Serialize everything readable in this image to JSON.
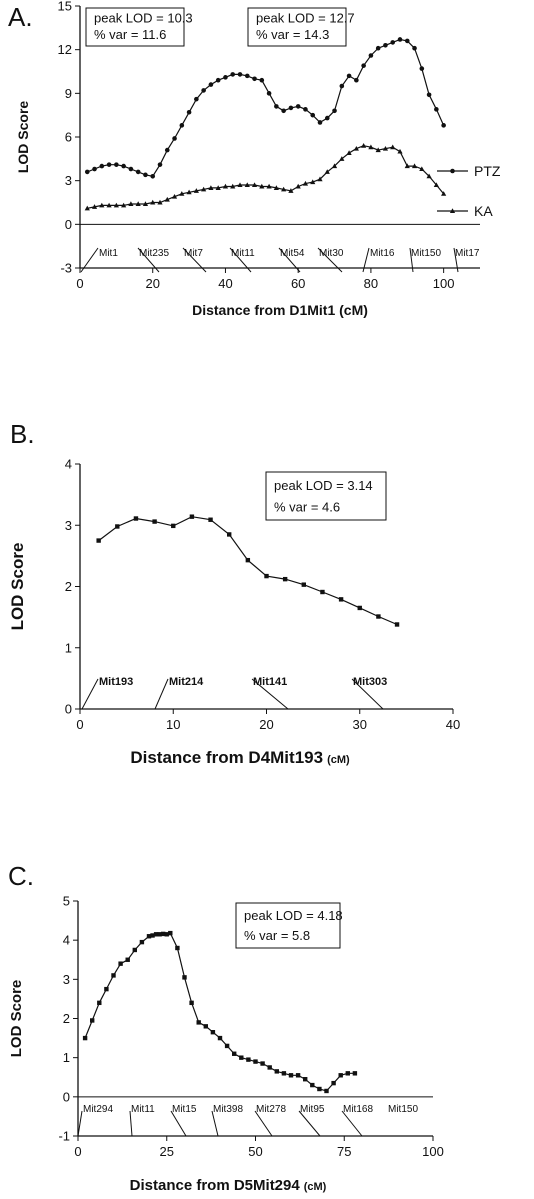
{
  "chart_data": [
    {
      "panel_label": "A.",
      "type": "line",
      "xlabel": "Distance from D1Mit1 (cM)",
      "ylabel": "LOD Score",
      "xlim": [
        0,
        110
      ],
      "ylim": [
        -3,
        15
      ],
      "xticks": [
        0,
        20,
        40,
        60,
        80,
        100
      ],
      "yticks": [
        -3,
        0,
        3,
        6,
        9,
        12,
        15
      ],
      "annotations": [
        {
          "line1": "peak LOD = 10.3",
          "line2": "% var = 11.6"
        },
        {
          "line1": "peak LOD = 12.7",
          "line2": "% var = 14.3"
        }
      ],
      "series": [
        {
          "name": "PTZ",
          "marker": "circle",
          "x": [
            2,
            4,
            6,
            8,
            10,
            12,
            14,
            16,
            18,
            20,
            22,
            24,
            26,
            28,
            30,
            32,
            34,
            36,
            38,
            40,
            42,
            44,
            46,
            48,
            50,
            52,
            54,
            56,
            58,
            60,
            62,
            64,
            66,
            68,
            70,
            72,
            74,
            76,
            78,
            80,
            82,
            84,
            86,
            88,
            90,
            92,
            94,
            96,
            98,
            100
          ],
          "y": [
            3.6,
            3.8,
            4.0,
            4.1,
            4.1,
            4.0,
            3.8,
            3.6,
            3.4,
            3.3,
            4.1,
            5.1,
            5.9,
            6.8,
            7.7,
            8.6,
            9.2,
            9.6,
            9.9,
            10.1,
            10.3,
            10.3,
            10.2,
            10.0,
            9.9,
            9.0,
            8.1,
            7.8,
            8.0,
            8.1,
            7.9,
            7.5,
            7.0,
            7.3,
            7.8,
            9.5,
            10.2,
            9.9,
            10.9,
            11.6,
            12.1,
            12.3,
            12.5,
            12.7,
            12.6,
            12.1,
            10.7,
            8.9,
            7.9,
            6.8
          ]
        },
        {
          "name": "KA",
          "marker": "triangle",
          "x": [
            2,
            4,
            6,
            8,
            10,
            12,
            14,
            16,
            18,
            20,
            22,
            24,
            26,
            28,
            30,
            32,
            34,
            36,
            38,
            40,
            42,
            44,
            46,
            48,
            50,
            52,
            54,
            56,
            58,
            60,
            62,
            64,
            66,
            68,
            70,
            72,
            74,
            76,
            78,
            80,
            82,
            84,
            86,
            88,
            90,
            92,
            94,
            96,
            98,
            100
          ],
          "y": [
            1.1,
            1.2,
            1.3,
            1.3,
            1.3,
            1.3,
            1.4,
            1.4,
            1.4,
            1.5,
            1.5,
            1.7,
            1.9,
            2.1,
            2.2,
            2.3,
            2.4,
            2.5,
            2.5,
            2.6,
            2.6,
            2.7,
            2.7,
            2.7,
            2.6,
            2.6,
            2.5,
            2.4,
            2.3,
            2.6,
            2.8,
            2.9,
            3.1,
            3.6,
            4.0,
            4.5,
            4.9,
            5.2,
            5.4,
            5.3,
            5.1,
            5.2,
            5.3,
            5.0,
            4.0,
            4.0,
            3.8,
            3.3,
            2.7,
            2.1
          ]
        }
      ],
      "markers": [
        {
          "label": "Mit1",
          "pos": 1
        },
        {
          "label": "Mit235",
          "pos": 23
        },
        {
          "label": "Mit7",
          "pos": 38
        },
        {
          "label": "Mit11",
          "pos": 51
        },
        {
          "label": "Mit54",
          "pos": 64
        },
        {
          "label": "Mit30",
          "pos": 78
        },
        {
          "label": "Mit16",
          "pos": 84
        },
        {
          "label": "Mit150",
          "pos": 92
        },
        {
          "label": "Mit17",
          "pos": 104
        }
      ]
    },
    {
      "panel_label": "B.",
      "type": "line",
      "xlabel": "Distance from D4Mit193",
      "xlabel_unit": "(cM)",
      "ylabel": "LOD Score",
      "xlim": [
        0,
        40
      ],
      "ylim": [
        0,
        4
      ],
      "xticks": [
        0,
        10,
        20,
        30,
        40
      ],
      "yticks": [
        0,
        1,
        2,
        3,
        4
      ],
      "annotations": [
        {
          "line1": "peak LOD = 3.14",
          "line2": "% var = 4.6"
        }
      ],
      "series": [
        {
          "marker": "square",
          "x": [
            2,
            4,
            6,
            8,
            10,
            12,
            14,
            16,
            18,
            20,
            22,
            24,
            26,
            28,
            30,
            32,
            34
          ],
          "y": [
            2.75,
            2.98,
            3.11,
            3.06,
            2.99,
            3.14,
            3.09,
            2.85,
            2.43,
            2.17,
            2.12,
            2.03,
            1.91,
            1.79,
            1.65,
            1.51,
            1.38
          ]
        }
      ],
      "markers": [
        {
          "label": "Mit193",
          "pos": 2
        },
        {
          "label": "Mit214",
          "pos": 8
        },
        {
          "label": "Mit141",
          "pos": 22
        },
        {
          "label": "Mit303",
          "pos": 33
        }
      ]
    },
    {
      "panel_label": "C.",
      "type": "line",
      "xlabel": "Distance from D5Mit294",
      "xlabel_unit": "(cM)",
      "ylabel": "LOD Score",
      "xlim": [
        0,
        100
      ],
      "ylim": [
        -1,
        5
      ],
      "xticks": [
        0,
        25,
        50,
        75,
        100
      ],
      "yticks": [
        -1,
        0,
        1,
        2,
        3,
        4,
        5
      ],
      "annotations": [
        {
          "line1": "peak LOD = 4.18",
          "line2": "% var = 5.8"
        }
      ],
      "series": [
        {
          "marker": "square",
          "x": [
            2,
            4,
            6,
            8,
            10,
            12,
            14,
            16,
            18,
            20,
            21,
            22,
            23,
            24,
            25,
            26,
            28,
            30,
            32,
            34,
            36,
            38,
            40,
            42,
            44,
            46,
            48,
            50,
            52,
            54,
            56,
            58,
            60,
            62,
            64,
            66,
            68,
            70,
            72,
            74,
            76,
            78
          ],
          "y": [
            1.5,
            1.95,
            2.4,
            2.75,
            3.1,
            3.4,
            3.5,
            3.75,
            3.95,
            4.1,
            4.12,
            4.15,
            4.15,
            4.16,
            4.15,
            4.18,
            3.8,
            3.05,
            2.4,
            1.9,
            1.8,
            1.65,
            1.5,
            1.3,
            1.1,
            1.0,
            0.95,
            0.9,
            0.85,
            0.75,
            0.65,
            0.6,
            0.55,
            0.55,
            0.45,
            0.3,
            0.2,
            0.15,
            0.35,
            0.55,
            0.6,
            0.6
          ]
        }
      ],
      "markers": [
        {
          "label": "Mit294",
          "pos": 0
        },
        {
          "label": "Mit11",
          "pos": 15
        },
        {
          "label": "Mit15",
          "pos": 30
        },
        {
          "label": "Mit398",
          "pos": 40
        },
        {
          "label": "Mit278",
          "pos": 55
        },
        {
          "label": "Mit95",
          "pos": 68
        },
        {
          "label": "Mit168",
          "pos": 80
        }
      ],
      "markers_text_only": [
        {
          "label": "Mit150"
        }
      ]
    }
  ]
}
